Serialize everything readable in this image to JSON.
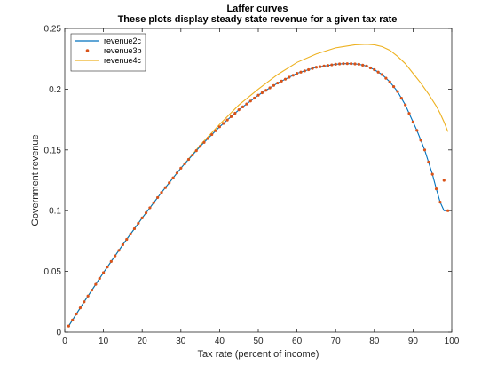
{
  "chart_data": {
    "type": "line",
    "title": "Laffer curves",
    "subtitle": "These plots display steady state revenue for a given tax rate",
    "xlabel": "Tax rate (percent of income)",
    "ylabel": "Government revenue",
    "xlim": [
      0,
      100
    ],
    "ylim": [
      0,
      0.25
    ],
    "xticks": [
      0,
      10,
      20,
      30,
      40,
      50,
      60,
      70,
      80,
      90,
      100
    ],
    "yticks": [
      0,
      0.05,
      0.1,
      0.15,
      0.2,
      0.25
    ],
    "ytick_labels": [
      "0",
      "0.05",
      "0.1",
      "0.15",
      "0.2",
      "0.25"
    ],
    "grid": false,
    "legend_position": "top-left",
    "series": [
      {
        "name": "revenue2c",
        "style": "line",
        "color": "#0072BD",
        "x": [
          1,
          5,
          10,
          15,
          20,
          25,
          30,
          35,
          40,
          45,
          50,
          55,
          60,
          65,
          70,
          72,
          74,
          76,
          78,
          80,
          82,
          84,
          86,
          88,
          90,
          91,
          92,
          93,
          94,
          95,
          96,
          97,
          98,
          99
        ],
        "y": [
          0.005,
          0.025,
          0.049,
          0.072,
          0.094,
          0.115,
          0.135,
          0.153,
          0.169,
          0.183,
          0.195,
          0.205,
          0.213,
          0.218,
          0.2205,
          0.221,
          0.221,
          0.2205,
          0.219,
          0.216,
          0.212,
          0.206,
          0.198,
          0.187,
          0.173,
          0.166,
          0.158,
          0.15,
          0.14,
          0.13,
          0.118,
          0.107,
          0.1,
          0.1
        ]
      },
      {
        "name": "revenue3b",
        "style": "dots",
        "color": "#D95319",
        "x": [
          1,
          5,
          10,
          15,
          20,
          25,
          30,
          35,
          40,
          45,
          50,
          55,
          60,
          65,
          70,
          72,
          74,
          76,
          78,
          80,
          82,
          84,
          86,
          88,
          90,
          91,
          92,
          93,
          94,
          95,
          96,
          97,
          98,
          99
        ],
        "y": [
          0.005,
          0.025,
          0.049,
          0.072,
          0.094,
          0.115,
          0.135,
          0.153,
          0.169,
          0.183,
          0.195,
          0.205,
          0.213,
          0.218,
          0.2205,
          0.221,
          0.221,
          0.2205,
          0.219,
          0.216,
          0.212,
          0.206,
          0.198,
          0.187,
          0.173,
          0.166,
          0.158,
          0.15,
          0.14,
          0.13,
          0.118,
          0.107,
          0.125,
          0.1
        ]
      },
      {
        "name": "revenue4c",
        "style": "line",
        "color": "#EDB120",
        "x": [
          1,
          5,
          10,
          15,
          20,
          25,
          30,
          35,
          40,
          45,
          50,
          55,
          60,
          65,
          70,
          75,
          78,
          80,
          82,
          84,
          86,
          88,
          90,
          92,
          94,
          96,
          97,
          98,
          99
        ],
        "y": [
          0.005,
          0.025,
          0.049,
          0.072,
          0.094,
          0.115,
          0.135,
          0.154,
          0.171,
          0.187,
          0.2,
          0.212,
          0.222,
          0.229,
          0.234,
          0.2365,
          0.237,
          0.2365,
          0.235,
          0.232,
          0.227,
          0.221,
          0.213,
          0.205,
          0.196,
          0.186,
          0.18,
          0.173,
          0.165
        ]
      }
    ]
  }
}
